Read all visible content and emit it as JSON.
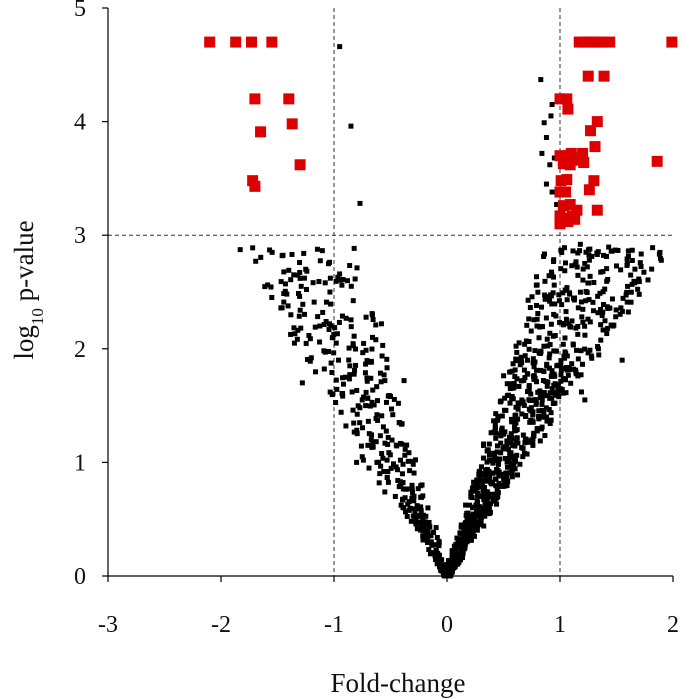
{
  "chart_data": {
    "type": "scatter",
    "xlabel": "Fold-change",
    "ylabel_main": "log",
    "ylabel_sub": "10",
    "ylabel_rest": " p-value",
    "xlim": [
      -3,
      2
    ],
    "ylim": [
      0,
      5
    ],
    "x_ticks": [
      "-3",
      "-2",
      "-1",
      "0",
      "1",
      "2"
    ],
    "y_ticks": [
      "0",
      "1",
      "2",
      "3",
      "4",
      "5"
    ],
    "grid": false,
    "threshold_lines": {
      "x": [
        -1,
        1
      ],
      "y": [
        3
      ]
    },
    "colors": {
      "significant": "#dd0000",
      "other": "#000000",
      "threshold": "#333333",
      "axis": "#000000"
    },
    "series": [
      {
        "role": "significant",
        "points": [
          [
            -2.1,
            4.7
          ],
          [
            -1.87,
            4.7
          ],
          [
            -1.73,
            4.7
          ],
          [
            -1.55,
            4.7
          ],
          [
            -1.7,
            4.2
          ],
          [
            -1.4,
            4.2
          ],
          [
            -1.37,
            3.98
          ],
          [
            -1.65,
            3.91
          ],
          [
            -1.3,
            3.62
          ],
          [
            -1.72,
            3.48
          ],
          [
            -1.7,
            3.43
          ],
          [
            1.17,
            4.7
          ],
          [
            1.22,
            4.7
          ],
          [
            1.27,
            4.7
          ],
          [
            1.32,
            4.7
          ],
          [
            1.37,
            4.7
          ],
          [
            1.44,
            4.7
          ],
          [
            1.99,
            4.7
          ],
          [
            1.25,
            4.4
          ],
          [
            1.39,
            4.4
          ],
          [
            1.0,
            4.2
          ],
          [
            1.06,
            4.2
          ],
          [
            1.07,
            4.11
          ],
          [
            1.33,
            4.0
          ],
          [
            1.27,
            3.92
          ],
          [
            1.31,
            3.78
          ],
          [
            1.2,
            3.72
          ],
          [
            1.0,
            3.7
          ],
          [
            1.07,
            3.7
          ],
          [
            1.1,
            3.72
          ],
          [
            1.14,
            3.68
          ],
          [
            1.03,
            3.63
          ],
          [
            1.09,
            3.62
          ],
          [
            1.16,
            3.66
          ],
          [
            1.21,
            3.64
          ],
          [
            1.86,
            3.65
          ],
          [
            1.01,
            3.48
          ],
          [
            1.06,
            3.49
          ],
          [
            1.3,
            3.48
          ],
          [
            1.26,
            3.4
          ],
          [
            1.0,
            3.38
          ],
          [
            1.05,
            3.38
          ],
          [
            1.03,
            3.26
          ],
          [
            1.09,
            3.27
          ],
          [
            1.15,
            3.22
          ],
          [
            1.33,
            3.22
          ],
          [
            1.0,
            3.17
          ],
          [
            1.05,
            3.15
          ],
          [
            1.11,
            3.17
          ],
          [
            1.0,
            3.1
          ],
          [
            1.07,
            3.12
          ],
          [
            1.13,
            3.14
          ]
        ]
      },
      {
        "role": "other",
        "points": [
          [
            -0.95,
            4.66
          ],
          [
            -0.85,
            3.96
          ],
          [
            -0.77,
            3.28
          ],
          [
            -1.57,
            2.87
          ],
          [
            -1.25,
            2.7
          ],
          [
            -1.3,
            2.62
          ],
          [
            -1.29,
            2.55
          ],
          [
            -1.47,
            2.36
          ],
          [
            -0.92,
            2.61
          ],
          [
            -0.93,
            2.56
          ],
          [
            0.83,
            4.37
          ],
          [
            0.93,
            4.15
          ],
          [
            0.92,
            4.05
          ],
          [
            0.86,
            3.99
          ],
          [
            0.88,
            3.86
          ],
          [
            0.84,
            3.72
          ],
          [
            0.95,
            3.68
          ],
          [
            0.91,
            3.62
          ],
          [
            0.88,
            3.45
          ],
          [
            0.93,
            3.38
          ],
          [
            0.97,
            3.27
          ],
          [
            1.18,
            2.92
          ],
          [
            1.23,
            2.85
          ],
          [
            1.26,
            2.78
          ],
          [
            1.38,
            2.68
          ],
          [
            1.55,
            1.9
          ],
          [
            1.34,
            2.0
          ],
          [
            1.12,
            1.82
          ],
          [
            1.19,
            1.62
          ],
          [
            1.22,
            1.55
          ],
          [
            -1.28,
            1.7
          ],
          [
            -1.35,
            2.05
          ],
          [
            -1.07,
            2.24
          ],
          [
            -1.1,
            2.32
          ],
          [
            -1.04,
            2.22
          ],
          [
            -1.01,
            2.1
          ],
          [
            -0.98,
            2.05
          ],
          [
            -0.96,
            1.9
          ],
          [
            -0.9,
            1.75
          ],
          [
            -0.86,
            1.85
          ],
          [
            -0.84,
            1.62
          ],
          [
            -0.75,
            1.55
          ],
          [
            -0.72,
            1.5
          ],
          [
            -0.66,
            2.3
          ],
          [
            -0.58,
            2.22
          ],
          [
            -0.63,
            2.08
          ],
          [
            -0.55,
            1.72
          ],
          [
            -0.5,
            1.58
          ],
          [
            -0.48,
            1.42
          ],
          [
            -0.62,
            1.42
          ],
          [
            -0.67,
            1.2
          ],
          [
            -0.74,
            1.02
          ],
          [
            -0.75,
            1.05
          ],
          [
            -0.7,
            1.15
          ],
          [
            -0.69,
            0.95
          ],
          [
            -0.8,
            1.0
          ],
          [
            -0.62,
            1.0
          ],
          [
            -0.6,
            0.82
          ],
          [
            -0.55,
            0.74
          ],
          [
            -0.56,
            0.92
          ],
          [
            -0.53,
            1.02
          ],
          [
            -0.52,
            1.22
          ],
          [
            -0.43,
            1.52
          ],
          [
            -0.38,
            1.72
          ],
          [
            -0.42,
            1.35
          ],
          [
            -0.4,
            1.16
          ],
          [
            -0.45,
            0.96
          ]
        ]
      }
    ]
  }
}
